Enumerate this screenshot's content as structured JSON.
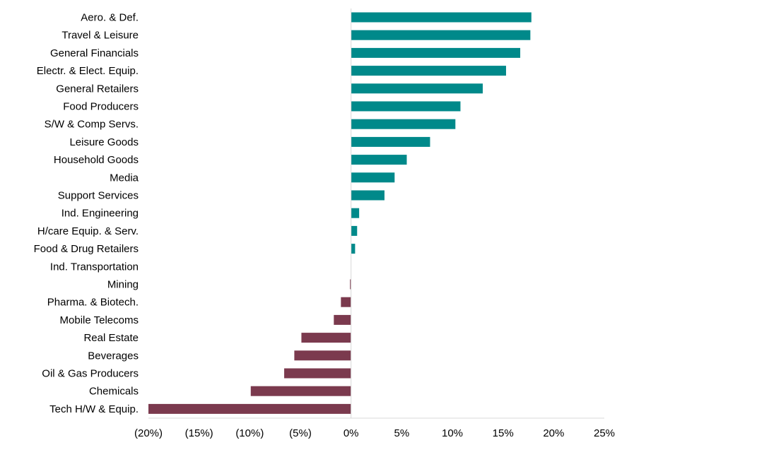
{
  "chart_data": {
    "type": "bar",
    "orientation": "horizontal",
    "categories": [
      "Aero. & Def.",
      "Travel & Leisure",
      "General Financials",
      "Electr. & Elect. Equip.",
      "General Retailers",
      "Food Producers",
      "S/W & Comp Servs.",
      "Leisure Goods",
      "Household Goods",
      "Media",
      "Support Services",
      "Ind. Engineering",
      "H/care Equip. & Serv.",
      "Food & Drug Retailers",
      "Ind. Transportation",
      "Mining",
      "Pharma. & Biotech.",
      "Mobile Telecoms",
      "Real Estate",
      "Beverages",
      "Oil & Gas Producers",
      "Chemicals",
      "Tech H/W & Equip."
    ],
    "values": [
      17.8,
      17.7,
      16.7,
      15.3,
      13.0,
      10.8,
      10.3,
      7.8,
      5.5,
      4.3,
      3.3,
      0.8,
      0.6,
      0.4,
      0.0,
      -0.1,
      -1.0,
      -1.7,
      -4.9,
      -5.6,
      -6.6,
      -9.9,
      -20.0
    ],
    "xlim": [
      -20,
      25
    ],
    "xticks": [
      -20,
      -15,
      -10,
      -5,
      0,
      5,
      10,
      15,
      20,
      25
    ],
    "xtick_labels": [
      "(20%)",
      "(15%)",
      "(10%)",
      "(5%)",
      "0%",
      "5%",
      "10%",
      "15%",
      "20%",
      "25%"
    ],
    "colors": {
      "positive": "#00898a",
      "negative": "#7b3a4e"
    },
    "grid": false,
    "legend": "none",
    "title": "",
    "xlabel": "",
    "ylabel": ""
  }
}
